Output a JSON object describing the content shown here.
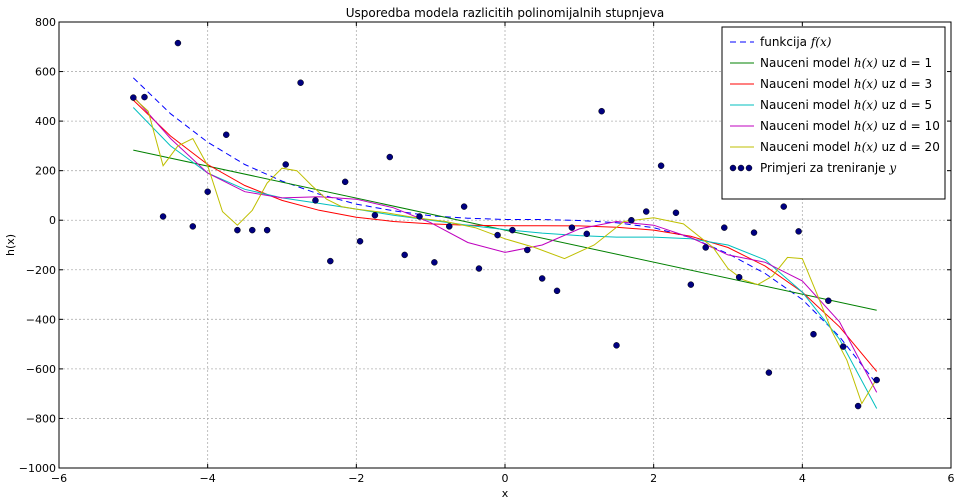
{
  "chart_data": {
    "type": "line",
    "title": "Usporedba modela razlicitih polinomijalnih stupnjeva",
    "xlabel": "x",
    "ylabel": "h(x)",
    "xlim": [
      -6,
      6
    ],
    "ylim": [
      -1000,
      800
    ],
    "xticks": [
      -6,
      -4,
      -2,
      0,
      2,
      4,
      6
    ],
    "yticks": [
      -1000,
      -800,
      -600,
      -400,
      -200,
      0,
      200,
      400,
      600,
      800
    ],
    "xtick_labels": [
      "−6",
      "−4",
      "−2",
      "0",
      "2",
      "4",
      "6"
    ],
    "ytick_labels": [
      "−1000",
      "−800",
      "−600",
      "−400",
      "−200",
      "0",
      "200",
      "400",
      "600",
      "800"
    ],
    "grid": true,
    "legend_position": "top-right",
    "series": [
      {
        "name": "funkcija",
        "math": "f(x)",
        "color": "#0000ff",
        "style": "dashed",
        "x": [
          -5,
          -4.5,
          -4,
          -3.5,
          -3,
          -2.5,
          -2,
          -1.5,
          -1,
          -0.5,
          0,
          0.5,
          1,
          1.5,
          2,
          2.5,
          3,
          3.5,
          4,
          4.5,
          5
        ],
        "y": [
          575,
          430,
          315,
          225,
          158,
          105,
          65,
          38,
          18,
          8,
          3,
          3,
          -1,
          -10,
          -30,
          -70,
          -135,
          -215,
          -320,
          -470,
          -660
        ]
      },
      {
        "name": "Nauceni model",
        "math": "h(x)",
        "suffix": "uz d = 1",
        "color": "#008000",
        "style": "solid",
        "x": [
          -5,
          5
        ],
        "y": [
          283,
          -363
        ]
      },
      {
        "name": "Nauceni model",
        "math": "h(x)",
        "suffix": "uz d = 3",
        "color": "#ff0000",
        "style": "solid",
        "x": [
          -5,
          -4.5,
          -4,
          -3.5,
          -3,
          -2.5,
          -2,
          -1.5,
          -1,
          -0.5,
          0,
          0.5,
          1,
          1.5,
          2,
          2.5,
          3,
          3.5,
          4,
          4.5,
          5
        ],
        "y": [
          485,
          340,
          225,
          140,
          80,
          40,
          12,
          -5,
          -15,
          -20,
          -22,
          -22,
          -23,
          -28,
          -40,
          -65,
          -110,
          -185,
          -290,
          -430,
          -610
        ]
      },
      {
        "name": "Nauceni model",
        "math": "h(x)",
        "suffix": "uz d = 5",
        "color": "#00bfbf",
        "style": "solid",
        "x": [
          -5,
          -4.5,
          -4,
          -3.5,
          -3,
          -2.5,
          -2,
          -1.5,
          -1,
          -0.5,
          0,
          0.5,
          1,
          1.5,
          2,
          2.5,
          3,
          3.5,
          4,
          4.5,
          5
        ],
        "y": [
          455,
          300,
          190,
          125,
          90,
          68,
          45,
          20,
          0,
          -20,
          -38,
          -52,
          -62,
          -68,
          -68,
          -75,
          -100,
          -160,
          -290,
          -480,
          -760
        ]
      },
      {
        "name": "Nauceni model",
        "math": "h(x)",
        "suffix": "uz d = 10",
        "color": "#bf00bf",
        "style": "solid",
        "x": [
          -5,
          -4.5,
          -4,
          -3.5,
          -3,
          -2.5,
          -2,
          -1.5,
          -1,
          -0.5,
          0,
          0.5,
          1,
          1.5,
          2,
          2.5,
          3,
          3.5,
          4,
          4.5,
          5
        ],
        "y": [
          500,
          330,
          190,
          115,
          90,
          95,
          85,
          50,
          -10,
          -90,
          -130,
          -100,
          -35,
          -5,
          -20,
          -70,
          -140,
          -170,
          -245,
          -410,
          -695
        ]
      },
      {
        "name": "Nauceni model",
        "math": "h(x)",
        "suffix": "uz d = 20",
        "color": "#bfbf00",
        "style": "solid",
        "x": [
          -5,
          -4.8,
          -4.6,
          -4.4,
          -4.2,
          -4.0,
          -3.8,
          -3.6,
          -3.4,
          -3.2,
          -3.0,
          -2.8,
          -2.6,
          -2.4,
          -2.2,
          -2.0,
          -1.6,
          -1.2,
          -0.8,
          -0.4,
          0,
          0.4,
          0.8,
          1.2,
          1.6,
          2.0,
          2.4,
          2.8,
          3.0,
          3.2,
          3.4,
          3.6,
          3.8,
          4.0,
          4.2,
          4.4,
          4.6,
          4.8,
          5
        ],
        "y": [
          495,
          440,
          220,
          300,
          330,
          220,
          35,
          -20,
          40,
          150,
          210,
          200,
          140,
          85,
          55,
          45,
          30,
          10,
          -5,
          -30,
          -75,
          -110,
          -155,
          -100,
          -5,
          10,
          -15,
          -110,
          -195,
          -240,
          -260,
          -225,
          -150,
          -155,
          -300,
          -450,
          -565,
          -740,
          -640
        ]
      }
    ],
    "scatter": {
      "name": "Primjeri za treniranje",
      "math": "y",
      "color": "#000080",
      "x": [
        -5,
        -4.85,
        -4.6,
        -4.4,
        -4.2,
        -4.0,
        -3.75,
        -3.6,
        -3.4,
        -3.2,
        -2.95,
        -2.75,
        -2.55,
        -2.35,
        -2.15,
        -1.95,
        -1.75,
        -1.55,
        -1.35,
        -1.15,
        -0.95,
        -0.75,
        -0.55,
        -0.35,
        -0.1,
        0.1,
        0.3,
        0.5,
        0.7,
        0.9,
        1.1,
        1.3,
        1.5,
        1.7,
        1.9,
        2.1,
        2.3,
        2.5,
        2.7,
        2.95,
        3.15,
        3.35,
        3.55,
        3.75,
        3.95,
        4.15,
        4.35,
        4.55,
        4.75,
        5.0
      ],
      "y": [
        495,
        497,
        15,
        715,
        -25,
        115,
        345,
        -40,
        -40,
        -40,
        225,
        555,
        80,
        -165,
        155,
        -85,
        20,
        255,
        -140,
        15,
        -170,
        -25,
        55,
        -195,
        -60,
        -40,
        -120,
        -235,
        -285,
        -30,
        -55,
        440,
        -505,
        0,
        35,
        220,
        30,
        -260,
        -110,
        -30,
        -230,
        -50,
        -615,
        55,
        -45,
        -460,
        -325,
        -510,
        -750,
        -645
      ]
    }
  }
}
